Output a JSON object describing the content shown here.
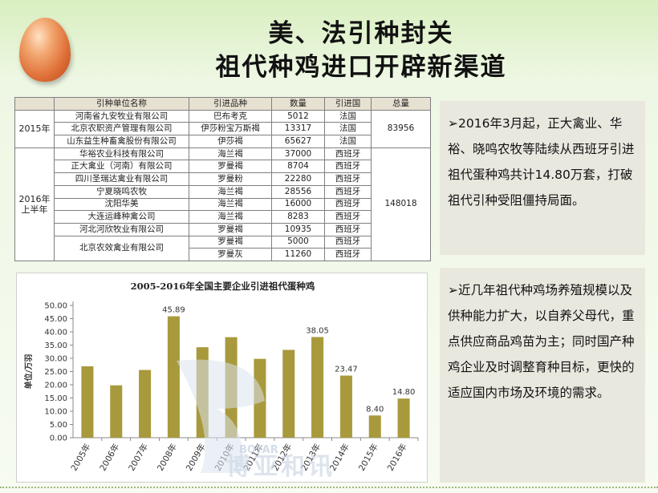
{
  "header": {
    "title_line1": "美、法引种封关",
    "title_line2": "祖代种鸡进口开辟新渠道"
  },
  "table": {
    "headers": [
      "",
      "引种单位名称",
      "引进品种",
      "数量",
      "引进国",
      "总量"
    ],
    "groups": [
      {
        "period": "2015年",
        "total": "83956",
        "rows": [
          {
            "company": "河南省九安牧业有限公司",
            "breed": "巴布考克",
            "qty": "5012",
            "country": "法国"
          },
          {
            "company": "北京农职资产管理有限公司",
            "breed": "伊莎粉宝万斯褐",
            "qty": "13317",
            "country": "法国"
          },
          {
            "company": "山东益生种畜禽股份有限公司",
            "breed": "伊莎褐",
            "qty": "65627",
            "country": "法国"
          }
        ]
      },
      {
        "period_line1": "2016年",
        "period_line2": "上半年",
        "total": "148018",
        "rows": [
          {
            "company": "华裕农业科技有限公司",
            "breed": "海兰褐",
            "qty": "37000",
            "country": "西班牙"
          },
          {
            "company": "正大禽业（河南）有限公司",
            "breed": "罗曼褐",
            "qty": "8704",
            "country": "西班牙"
          },
          {
            "company": "四川圣瑞达禽业有限公司",
            "breed": "罗曼粉",
            "qty": "22280",
            "country": "西班牙"
          },
          {
            "company": "宁夏晓鸣农牧",
            "breed": "海兰褐",
            "qty": "28556",
            "country": "西班牙"
          },
          {
            "company": "沈阳华美",
            "breed": "海兰褐",
            "qty": "16000",
            "country": "西班牙"
          },
          {
            "company": "大连运峰种禽公司",
            "breed": "海兰褐",
            "qty": "8283",
            "country": "西班牙"
          },
          {
            "company": "河北河欣牧业有限公司",
            "breed": "罗曼褐",
            "qty": "10935",
            "country": "西班牙"
          },
          {
            "company": "北京农效禽业有限公司",
            "breed": "罗曼褐",
            "qty": "5000",
            "country": "西班牙"
          },
          {
            "company": "",
            "breed": "罗曼灰",
            "qty": "11260",
            "country": "西班牙"
          }
        ]
      }
    ]
  },
  "chart_data": {
    "type": "bar",
    "title": "2005-2016年全国主要企业引进祖代蛋种鸡",
    "ylabel": "单位/万羽",
    "xlabel": "",
    "ylim": [
      0,
      50
    ],
    "yticks": [
      "0.00",
      "5.00",
      "10.00",
      "15.00",
      "20.00",
      "25.00",
      "30.00",
      "35.00",
      "40.00",
      "45.00",
      "50.00"
    ],
    "categories": [
      "2005年",
      "2006年",
      "2007年",
      "2008年",
      "2009年",
      "2010年",
      "2011年",
      "2012年",
      "2013年",
      "2014年",
      "2015年",
      "2016年"
    ],
    "values": [
      27.0,
      19.8,
      25.6,
      45.89,
      34.2,
      38.0,
      29.8,
      33.2,
      38.05,
      23.47,
      8.4,
      14.8
    ],
    "data_labels": [
      "",
      "",
      "",
      "45.89",
      "",
      "",
      "",
      "",
      "38.05",
      "23.47",
      "8.40",
      "14.80"
    ],
    "bar_color": "#a89a3c",
    "grid": false
  },
  "watermark": {
    "text": "博亚和讯",
    "sub": "BOYAR"
  },
  "panels": {
    "p1": "➢2016年3月起，正大禽业、华裕、晓鸣农牧等陆续从西班牙引进祖代蛋种鸡共计14.80万套，打破祖代引种受阻僵持局面。",
    "p2": "➢近几年祖代种鸡场养殖规模以及供种能力扩大，以自养父母代，重点供应商品鸡苗为主；同时国产种鸡企业及时调整育种目标，更快的适应国内市场及环境的需求。"
  },
  "colors": {
    "accent": "#a89a3c",
    "panel_bg": "#e9e8df",
    "header_bg": "#e7e1d2"
  }
}
